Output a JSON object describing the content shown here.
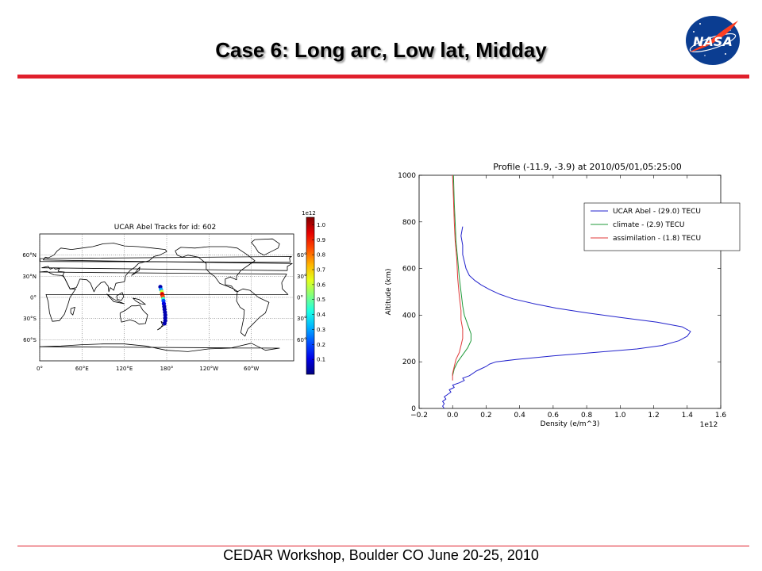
{
  "slide": {
    "title": "Case 6: Long arc, Low lat, Midday",
    "footer": "CEDAR Workshop, Boulder CO June 20-25, 2010",
    "logo": {
      "text": "NASA",
      "icon": "nasa-meatball-icon",
      "colors": {
        "blue": "#0b3d91",
        "red": "#fc3d21"
      }
    },
    "accent_color": "#e0202c"
  },
  "chart_data": [
    {
      "type": "scatter",
      "title": "UCAR Abel Tracks for id: 602",
      "xlabel": "",
      "ylabel": "",
      "projection": "cylindrical world map",
      "x_ticks": [
        "0°",
        "60°E",
        "120°E",
        "180°",
        "120°W",
        "60°W"
      ],
      "y_ticks_left": [
        "60°N",
        "30°N",
        "0°",
        "30°S",
        "60°S"
      ],
      "y_ticks_right": [
        "60°N",
        "30°N",
        "0°",
        "30°S",
        "60°S"
      ],
      "colorbar": {
        "label": "1e12",
        "ticks": [
          "0.1",
          "0.2",
          "0.3",
          "0.4",
          "0.5",
          "0.6",
          "0.7",
          "0.8",
          "0.9",
          "1.0"
        ],
        "range": [
          0,
          1.05
        ]
      },
      "track": [
        {
          "lon": 171,
          "lat": 15,
          "v": 0.05
        },
        {
          "lon": 172,
          "lat": 11,
          "v": 0.3
        },
        {
          "lon": 173,
          "lat": 8,
          "v": 0.6
        },
        {
          "lon": 173.5,
          "lat": 5,
          "v": 0.9
        },
        {
          "lon": 174,
          "lat": 3,
          "v": 1.0
        },
        {
          "lon": 174.5,
          "lat": 1,
          "v": 0.85
        },
        {
          "lon": 175,
          "lat": -2,
          "v": 0.45
        },
        {
          "lon": 175.5,
          "lat": -5,
          "v": 0.2
        },
        {
          "lon": 176,
          "lat": -9,
          "v": 0.1
        },
        {
          "lon": 176.5,
          "lat": -13,
          "v": 0.05
        },
        {
          "lon": 177,
          "lat": -17,
          "v": 0.05
        },
        {
          "lon": 177.5,
          "lat": -21,
          "v": 0.05
        },
        {
          "lon": 178,
          "lat": -25,
          "v": 0.05
        },
        {
          "lon": 178,
          "lat": -29,
          "v": 0.05
        },
        {
          "lon": 178,
          "lat": -33,
          "v": 0.05
        },
        {
          "lon": 177,
          "lat": -37,
          "v": 0.05
        }
      ]
    },
    {
      "type": "line",
      "title": "Profile (-11.9, -3.9) at 2010/05/01,05:25:00",
      "xlabel": "Density (e/m^3)",
      "ylabel": "Altitude (km)",
      "x_exponent_label": "1e12",
      "xlim": [
        -0.2,
        1.6
      ],
      "ylim": [
        0,
        1000
      ],
      "x_ticks": [
        -0.2,
        0.0,
        0.2,
        0.4,
        0.6,
        0.8,
        1.0,
        1.2,
        1.4,
        1.6
      ],
      "x_tick_labels": [
        "−0.2",
        "0.0",
        "0.2",
        "0.4",
        "0.6",
        "0.8",
        "1.0",
        "1.2",
        "1.4",
        "1.6"
      ],
      "y_ticks": [
        0,
        200,
        400,
        600,
        800,
        1000
      ],
      "legend_position": "top-right",
      "series": [
        {
          "name": "UCAR Abel - (29.0) TECU",
          "color": "#2222cc",
          "points": [
            [
              -0.05,
              0
            ],
            [
              -0.06,
              10
            ],
            [
              -0.05,
              20
            ],
            [
              -0.06,
              30
            ],
            [
              -0.04,
              40
            ],
            [
              -0.05,
              50
            ],
            [
              -0.03,
              60
            ],
            [
              -0.01,
              70
            ],
            [
              -0.02,
              80
            ],
            [
              0.01,
              90
            ],
            [
              0.0,
              100
            ],
            [
              0.04,
              110
            ],
            [
              0.07,
              120
            ],
            [
              0.06,
              130
            ],
            [
              0.1,
              140
            ],
            [
              0.12,
              150
            ],
            [
              0.14,
              160
            ],
            [
              0.17,
              170
            ],
            [
              0.2,
              180
            ],
            [
              0.22,
              190
            ],
            [
              0.26,
              200
            ],
            [
              0.38,
              210
            ],
            [
              0.6,
              225
            ],
            [
              0.85,
              240
            ],
            [
              1.1,
              255
            ],
            [
              1.25,
              270
            ],
            [
              1.35,
              290
            ],
            [
              1.4,
              310
            ],
            [
              1.42,
              330
            ],
            [
              1.37,
              350
            ],
            [
              1.22,
              370
            ],
            [
              1.0,
              390
            ],
            [
              0.8,
              410
            ],
            [
              0.62,
              430
            ],
            [
              0.48,
              450
            ],
            [
              0.36,
              470
            ],
            [
              0.28,
              490
            ],
            [
              0.22,
              510
            ],
            [
              0.17,
              530
            ],
            [
              0.13,
              550
            ],
            [
              0.1,
              570
            ],
            [
              0.08,
              600
            ],
            [
              0.07,
              630
            ],
            [
              0.06,
              660
            ],
            [
              0.06,
              700
            ],
            [
              0.05,
              740
            ],
            [
              0.06,
              780
            ]
          ]
        },
        {
          "name": "climate - (2.9) TECU",
          "color": "#1f9a3a",
          "points": [
            [
              0.0,
              140
            ],
            [
              0.01,
              170
            ],
            [
              0.03,
              200
            ],
            [
              0.06,
              230
            ],
            [
              0.09,
              260
            ],
            [
              0.11,
              290
            ],
            [
              0.11,
              320
            ],
            [
              0.09,
              360
            ],
            [
              0.07,
              400
            ],
            [
              0.06,
              440
            ],
            [
              0.05,
              500
            ],
            [
              0.04,
              560
            ],
            [
              0.03,
              640
            ],
            [
              0.02,
              720
            ],
            [
              0.015,
              800
            ],
            [
              0.01,
              880
            ],
            [
              0.005,
              1000
            ]
          ]
        },
        {
          "name": "assimilation - (1.8) TECU",
          "color": "#e03a3a",
          "points": [
            [
              0.0,
              120
            ],
            [
              0.0,
              150
            ],
            [
              0.01,
              180
            ],
            [
              0.02,
              210
            ],
            [
              0.04,
              240
            ],
            [
              0.05,
              270
            ],
            [
              0.06,
              300
            ],
            [
              0.06,
              340
            ],
            [
              0.05,
              380
            ],
            [
              0.05,
              420
            ],
            [
              0.04,
              480
            ],
            [
              0.03,
              560
            ],
            [
              0.025,
              640
            ],
            [
              0.015,
              720
            ],
            [
              0.01,
              800
            ],
            [
              0.005,
              900
            ],
            [
              0.0,
              1000
            ]
          ]
        }
      ]
    }
  ]
}
